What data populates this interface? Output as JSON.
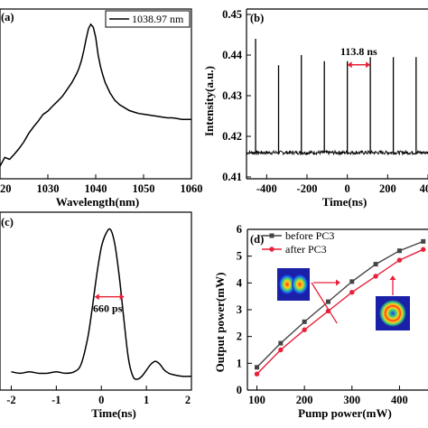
{
  "chart_data": [
    {
      "panel": "a",
      "type": "line",
      "xlabel": "Wavelength(nm)",
      "ylabel": "",
      "xlim": [
        1020,
        1060
      ],
      "xticks": [
        "1020",
        "1030",
        "1040",
        "1050",
        "1060"
      ],
      "legend": [
        "1038.97 nm"
      ],
      "series": [
        {
          "name": "1038.97 nm",
          "x": [
            1020.0,
            1021.0,
            1022.0,
            1023.0,
            1024.0,
            1025.0,
            1026.0,
            1027.0,
            1028.0,
            1029.0,
            1030.0,
            1031.0,
            1032.0,
            1033.0,
            1034.0,
            1035.0,
            1036.0,
            1036.5,
            1037.0,
            1037.5,
            1038.0,
            1038.5,
            1038.97,
            1039.5,
            1040.0,
            1040.5,
            1041.0,
            1041.5,
            1042.0,
            1043.0,
            1044.0,
            1045.0,
            1046.0,
            1047.0,
            1048.0,
            1049.0,
            1050.0,
            1051.0,
            1052.0,
            1053.0,
            1054.0,
            1055.0,
            1056.0,
            1057.0,
            1058.0,
            1059.0,
            1060.0
          ],
          "y": [
            0.02,
            0.03,
            0.05,
            0.08,
            0.12,
            0.17,
            0.22,
            0.27,
            0.31,
            0.35,
            0.38,
            0.41,
            0.44,
            0.48,
            0.52,
            0.57,
            0.63,
            0.67,
            0.72,
            0.79,
            0.87,
            0.94,
            0.97,
            0.95,
            0.88,
            0.76,
            0.68,
            0.62,
            0.57,
            0.5,
            0.45,
            0.42,
            0.4,
            0.38,
            0.37,
            0.36,
            0.355,
            0.35,
            0.345,
            0.34,
            0.335,
            0.33,
            0.33,
            0.325,
            0.32,
            0.32,
            0.32
          ]
        }
      ]
    },
    {
      "panel": "b",
      "type": "line",
      "xlabel": "Time(ns)",
      "ylabel": "Intensity(a.u.)",
      "xlim": [
        -500,
        400
      ],
      "ylim": [
        0.41,
        0.45
      ],
      "xticks": [
        "-400",
        "-200",
        "0",
        "200",
        "400"
      ],
      "yticks": [
        "0.41",
        "0.42",
        "0.43",
        "0.44",
        "0.45"
      ],
      "pulse_times_ns": [
        -455,
        -341,
        -228,
        -114,
        0,
        114,
        228,
        341,
        455
      ],
      "pulse_peaks": [
        0.444,
        0.4375,
        0.44,
        0.4385,
        0.4385,
        0.4395,
        0.4395,
        0.4395,
        0.438
      ],
      "baseline": 0.416,
      "annotation": "113.8 ns"
    },
    {
      "panel": "c",
      "type": "line",
      "xlabel": "Time(ns)",
      "ylabel": "",
      "xlim": [
        -2,
        2
      ],
      "xticks": [
        "-2",
        "-1",
        "0",
        "1",
        "2"
      ],
      "annotation": "660 ps",
      "series": [
        {
          "name": "",
          "x": [
            -2.0,
            -1.8,
            -1.6,
            -1.4,
            -1.2,
            -1.0,
            -0.8,
            -0.6,
            -0.45,
            -0.3,
            -0.2,
            -0.1,
            0.0,
            0.1,
            0.2,
            0.3,
            0.4,
            0.5,
            0.6,
            0.7,
            0.8,
            0.9,
            1.0,
            1.1,
            1.2,
            1.3,
            1.4,
            1.5,
            1.6,
            1.8,
            2.0
          ],
          "y": [
            0.05,
            0.04,
            0.05,
            0.04,
            0.04,
            0.05,
            0.04,
            0.05,
            0.1,
            0.28,
            0.48,
            0.7,
            0.88,
            0.97,
            1.0,
            0.9,
            0.68,
            0.4,
            0.14,
            0.02,
            0.0,
            0.02,
            0.06,
            0.1,
            0.12,
            0.1,
            0.06,
            0.04,
            0.03,
            0.02,
            0.02
          ]
        }
      ]
    },
    {
      "panel": "d",
      "type": "line",
      "xlabel": "Pump power(mW)",
      "ylabel": "Output power(mW)",
      "xlim": [
        80,
        460
      ],
      "ylim": [
        0,
        6
      ],
      "xticks": [
        "100",
        "200",
        "300",
        "400"
      ],
      "yticks": [
        "0",
        "1",
        "2",
        "3",
        "4",
        "5",
        "6"
      ],
      "legend_position": "top-left",
      "series": [
        {
          "name": "before PC3",
          "color": "#444444",
          "marker": "square",
          "x": [
            100,
            150,
            200,
            250,
            300,
            350,
            400,
            450
          ],
          "y": [
            0.85,
            1.75,
            2.55,
            3.3,
            4.05,
            4.7,
            5.2,
            5.55
          ]
        },
        {
          "name": "after PC3",
          "color": "#e8203a",
          "marker": "circle",
          "x": [
            100,
            150,
            200,
            250,
            300,
            350,
            400,
            450
          ],
          "y": [
            0.6,
            1.5,
            2.25,
            2.95,
            3.65,
            4.25,
            4.85,
            5.25
          ]
        }
      ]
    }
  ],
  "panels": {
    "a": {
      "label": "(a)",
      "legend": "1038.97 nm"
    },
    "b": {
      "label": "(b)",
      "annotation": "113.8 ns"
    },
    "c": {
      "label": "(c)",
      "annotation": "660 ps"
    },
    "d": {
      "label": "(d)",
      "legend_before": "before PC3",
      "legend_after": "after PC3"
    }
  },
  "colors": {
    "line": "#000000",
    "before": "#444444",
    "after": "#e8203a",
    "arrow": "#e8203a"
  }
}
